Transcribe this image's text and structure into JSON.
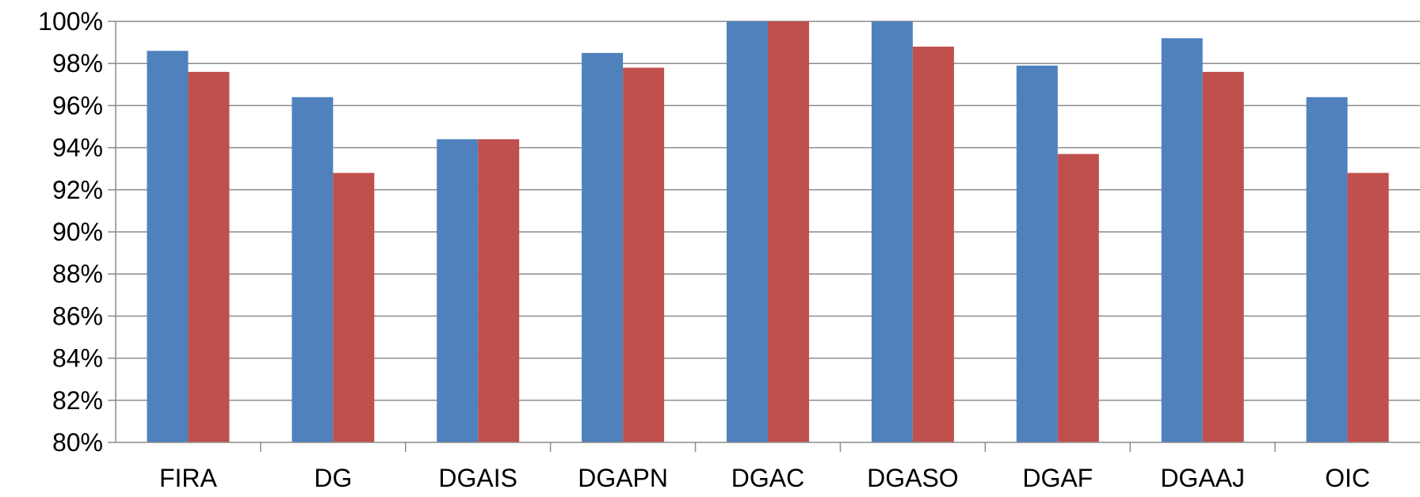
{
  "chart_data": {
    "type": "bar",
    "title": "",
    "xlabel": "",
    "ylabel": "",
    "categories": [
      "FIRA",
      "DG",
      "DGAIS",
      "DGAPN",
      "DGAC",
      "DGASO",
      "DGAF",
      "DGAAJ",
      "OIC"
    ],
    "series": [
      {
        "color": "#4F81BD",
        "values": [
          98.6,
          96.4,
          94.4,
          98.5,
          100,
          100,
          97.9,
          99.2,
          96.4
        ]
      },
      {
        "color": "#C0504D",
        "values": [
          97.6,
          92.8,
          94.4,
          97.8,
          100,
          98.8,
          93.7,
          97.6,
          92.8
        ]
      }
    ],
    "ylim": [
      80,
      100
    ],
    "yticks": [
      "80%",
      "82%",
      "84%",
      "86%",
      "88%",
      "90%",
      "92%",
      "94%",
      "96%",
      "98%",
      "100%"
    ],
    "grid": true,
    "legend": "none"
  }
}
